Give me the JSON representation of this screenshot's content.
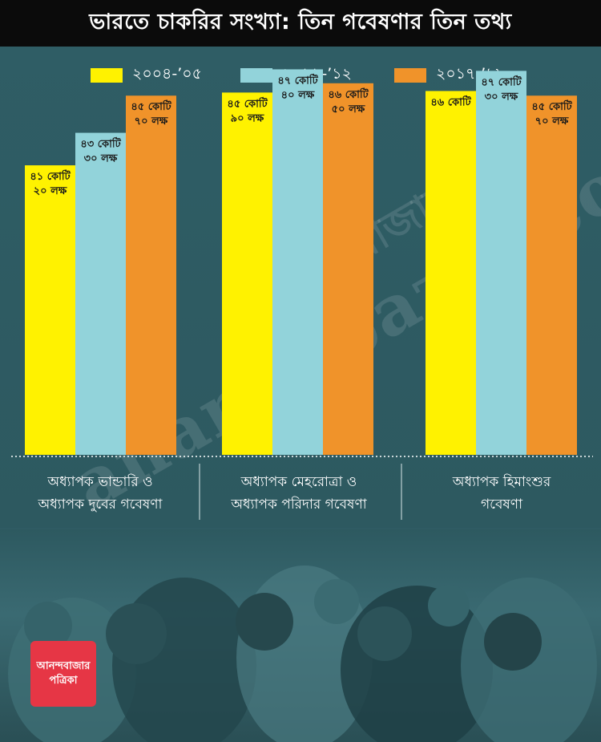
{
  "title": "ভারতে চাকরির সংখ্যা: তিন গবেষণার তিন তথ্য",
  "colors": {
    "y2004": "#fff200",
    "y2011": "#92d3da",
    "y2017": "#f0932a"
  },
  "watermark": {
    "main": "anandabazar.com",
    "top": "আনন্দবাজার পত্রিকা"
  },
  "logo": {
    "line1": "আনন্দবাজার",
    "line2": "পত্রিকা"
  },
  "chart_data": {
    "type": "bar",
    "categories": [
      "অধ্যাপক ভান্ডারি ও অধ্যাপক দুবের গবেষণা",
      "অধ্যাপক মেহরোত্রা ও অধ্যাপক পরিদার গবেষণা",
      "অধ্যাপক হিমাংশুর গবেষণা"
    ],
    "category_lines": [
      [
        "অধ্যাপক ভান্ডারি ও",
        "অধ্যাপক দুবের গবেষণা"
      ],
      [
        "অধ্যাপক মেহরোত্রা ও",
        "অধ্যাপক পরিদার গবেষণা"
      ],
      [
        "অধ্যাপক হিমাংশুর",
        "গবেষণা"
      ]
    ],
    "series": [
      {
        "name": "২০০৪-’০৫",
        "color": "#fff200",
        "values": [
          41.2,
          45.9,
          46.0
        ],
        "labels": [
          [
            "৪১ কোটি",
            "২০ লক্ষ"
          ],
          [
            "৪৫ কোটি",
            "৯০ লক্ষ"
          ],
          [
            "৪৬ কোটি"
          ]
        ]
      },
      {
        "name": "২০১১-’১২",
        "color": "#92d3da",
        "values": [
          43.3,
          47.4,
          47.3
        ],
        "labels": [
          [
            "৪৩ কোটি",
            "৩০ লক্ষ"
          ],
          [
            "৪৭ কোটি",
            "৪০ লক্ষ"
          ],
          [
            "৪৭ কোটি",
            "৩০ লক্ষ"
          ]
        ]
      },
      {
        "name": "২০১৭-’১৮",
        "color": "#f0932a",
        "values": [
          45.7,
          46.5,
          45.7
        ],
        "labels": [
          [
            "৪৫ কোটি",
            "৭০ লক্ষ"
          ],
          [
            "৪৬ কোটি",
            "৫০ লক্ষ"
          ],
          [
            "৪৫ কোটি",
            "৭০ লক্ষ"
          ]
        ]
      }
    ],
    "unit": "কোটি",
    "grid": false,
    "legend_position": "top"
  }
}
